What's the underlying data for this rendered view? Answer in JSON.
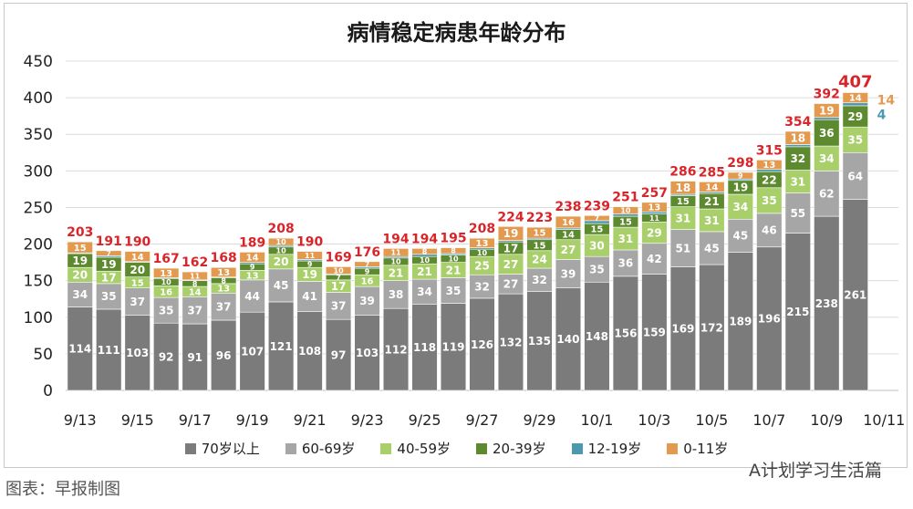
{
  "chart_data": {
    "type": "bar",
    "stacked": true,
    "title": "病情稳定病患年龄分布",
    "ylim": [
      0,
      450
    ],
    "yticks": [
      0,
      50,
      100,
      150,
      200,
      250,
      300,
      350,
      400,
      450
    ],
    "categories": [
      "9/13",
      "9/14",
      "9/15",
      "9/16",
      "9/17",
      "9/18",
      "9/19",
      "9/20",
      "9/21",
      "9/22",
      "9/23",
      "9/24",
      "9/25",
      "9/26",
      "9/27",
      "9/28",
      "9/29",
      "9/30",
      "10/1",
      "10/2",
      "10/3",
      "10/4",
      "10/5",
      "10/6",
      "10/7",
      "10/8",
      "10/9",
      "10/10",
      "10/11"
    ],
    "xtick_labels": [
      "9/13",
      "9/15",
      "9/17",
      "9/19",
      "9/21",
      "9/23",
      "9/25",
      "9/27",
      "9/29",
      "10/1",
      "10/3",
      "10/5",
      "10/7",
      "10/9",
      "10/11"
    ],
    "series": [
      {
        "name": "70岁以上",
        "color": "#7b7b7b",
        "values": [
          114,
          111,
          103,
          92,
          91,
          96,
          107,
          121,
          108,
          97,
          103,
          112,
          118,
          119,
          126,
          132,
          135,
          140,
          148,
          156,
          159,
          169,
          172,
          189,
          196,
          215,
          238,
          261,
          0
        ]
      },
      {
        "name": "60-69岁",
        "color": "#a6a6a6",
        "values": [
          34,
          35,
          37,
          35,
          37,
          37,
          44,
          45,
          41,
          37,
          39,
          38,
          34,
          35,
          32,
          27,
          32,
          39,
          35,
          36,
          42,
          51,
          45,
          45,
          46,
          55,
          62,
          64,
          0
        ]
      },
      {
        "name": "40-59岁",
        "color": "#a9cf6b",
        "values": [
          20,
          17,
          15,
          16,
          14,
          13,
          13,
          20,
          19,
          17,
          16,
          21,
          21,
          21,
          25,
          27,
          24,
          27,
          30,
          31,
          29,
          31,
          31,
          34,
          35,
          31,
          34,
          35,
          0
        ]
      },
      {
        "name": "20-39岁",
        "color": "#5d8a2e",
        "values": [
          19,
          19,
          20,
          10,
          8,
          8,
          9,
          10,
          9,
          7,
          9,
          10,
          10,
          10,
          10,
          17,
          15,
          14,
          15,
          15,
          11,
          15,
          21,
          19,
          22,
          32,
          36,
          29,
          0
        ]
      },
      {
        "name": "12-19岁",
        "color": "#4b98b0",
        "values": [
          1,
          2,
          1,
          1,
          1,
          1,
          2,
          2,
          2,
          1,
          2,
          2,
          3,
          2,
          2,
          2,
          2,
          2,
          4,
          3,
          3,
          2,
          2,
          2,
          3,
          3,
          3,
          4,
          0
        ]
      },
      {
        "name": "0-11岁",
        "color": "#e39a4e",
        "values": [
          15,
          7,
          14,
          13,
          11,
          13,
          14,
          10,
          11,
          10,
          7,
          11,
          8,
          8,
          13,
          19,
          15,
          16,
          7,
          10,
          13,
          18,
          14,
          9,
          13,
          18,
          19,
          14,
          0
        ]
      }
    ],
    "totals": [
      203,
      191,
      190,
      167,
      162,
      168,
      189,
      208,
      190,
      169,
      176,
      194,
      194,
      195,
      208,
      224,
      223,
      238,
      239,
      251,
      257,
      286,
      285,
      298,
      315,
      354,
      392,
      407,
      null
    ],
    "segment_labels_shown": {
      "70岁以上": true,
      "60-69岁": true,
      "40-59岁": true,
      "20-39岁": true,
      "12-19岁": false,
      "0-11岁": true
    },
    "side_labels": [
      {
        "text": "14",
        "color": "#e39a4e"
      },
      {
        "text": "4",
        "color": "#4b98b0"
      }
    ],
    "total_label_color": "#d9252a",
    "grid": true,
    "legend_position": "bottom"
  },
  "watermark_left": "图表：早报制图",
  "watermark_right": "A计划学习生活篇"
}
